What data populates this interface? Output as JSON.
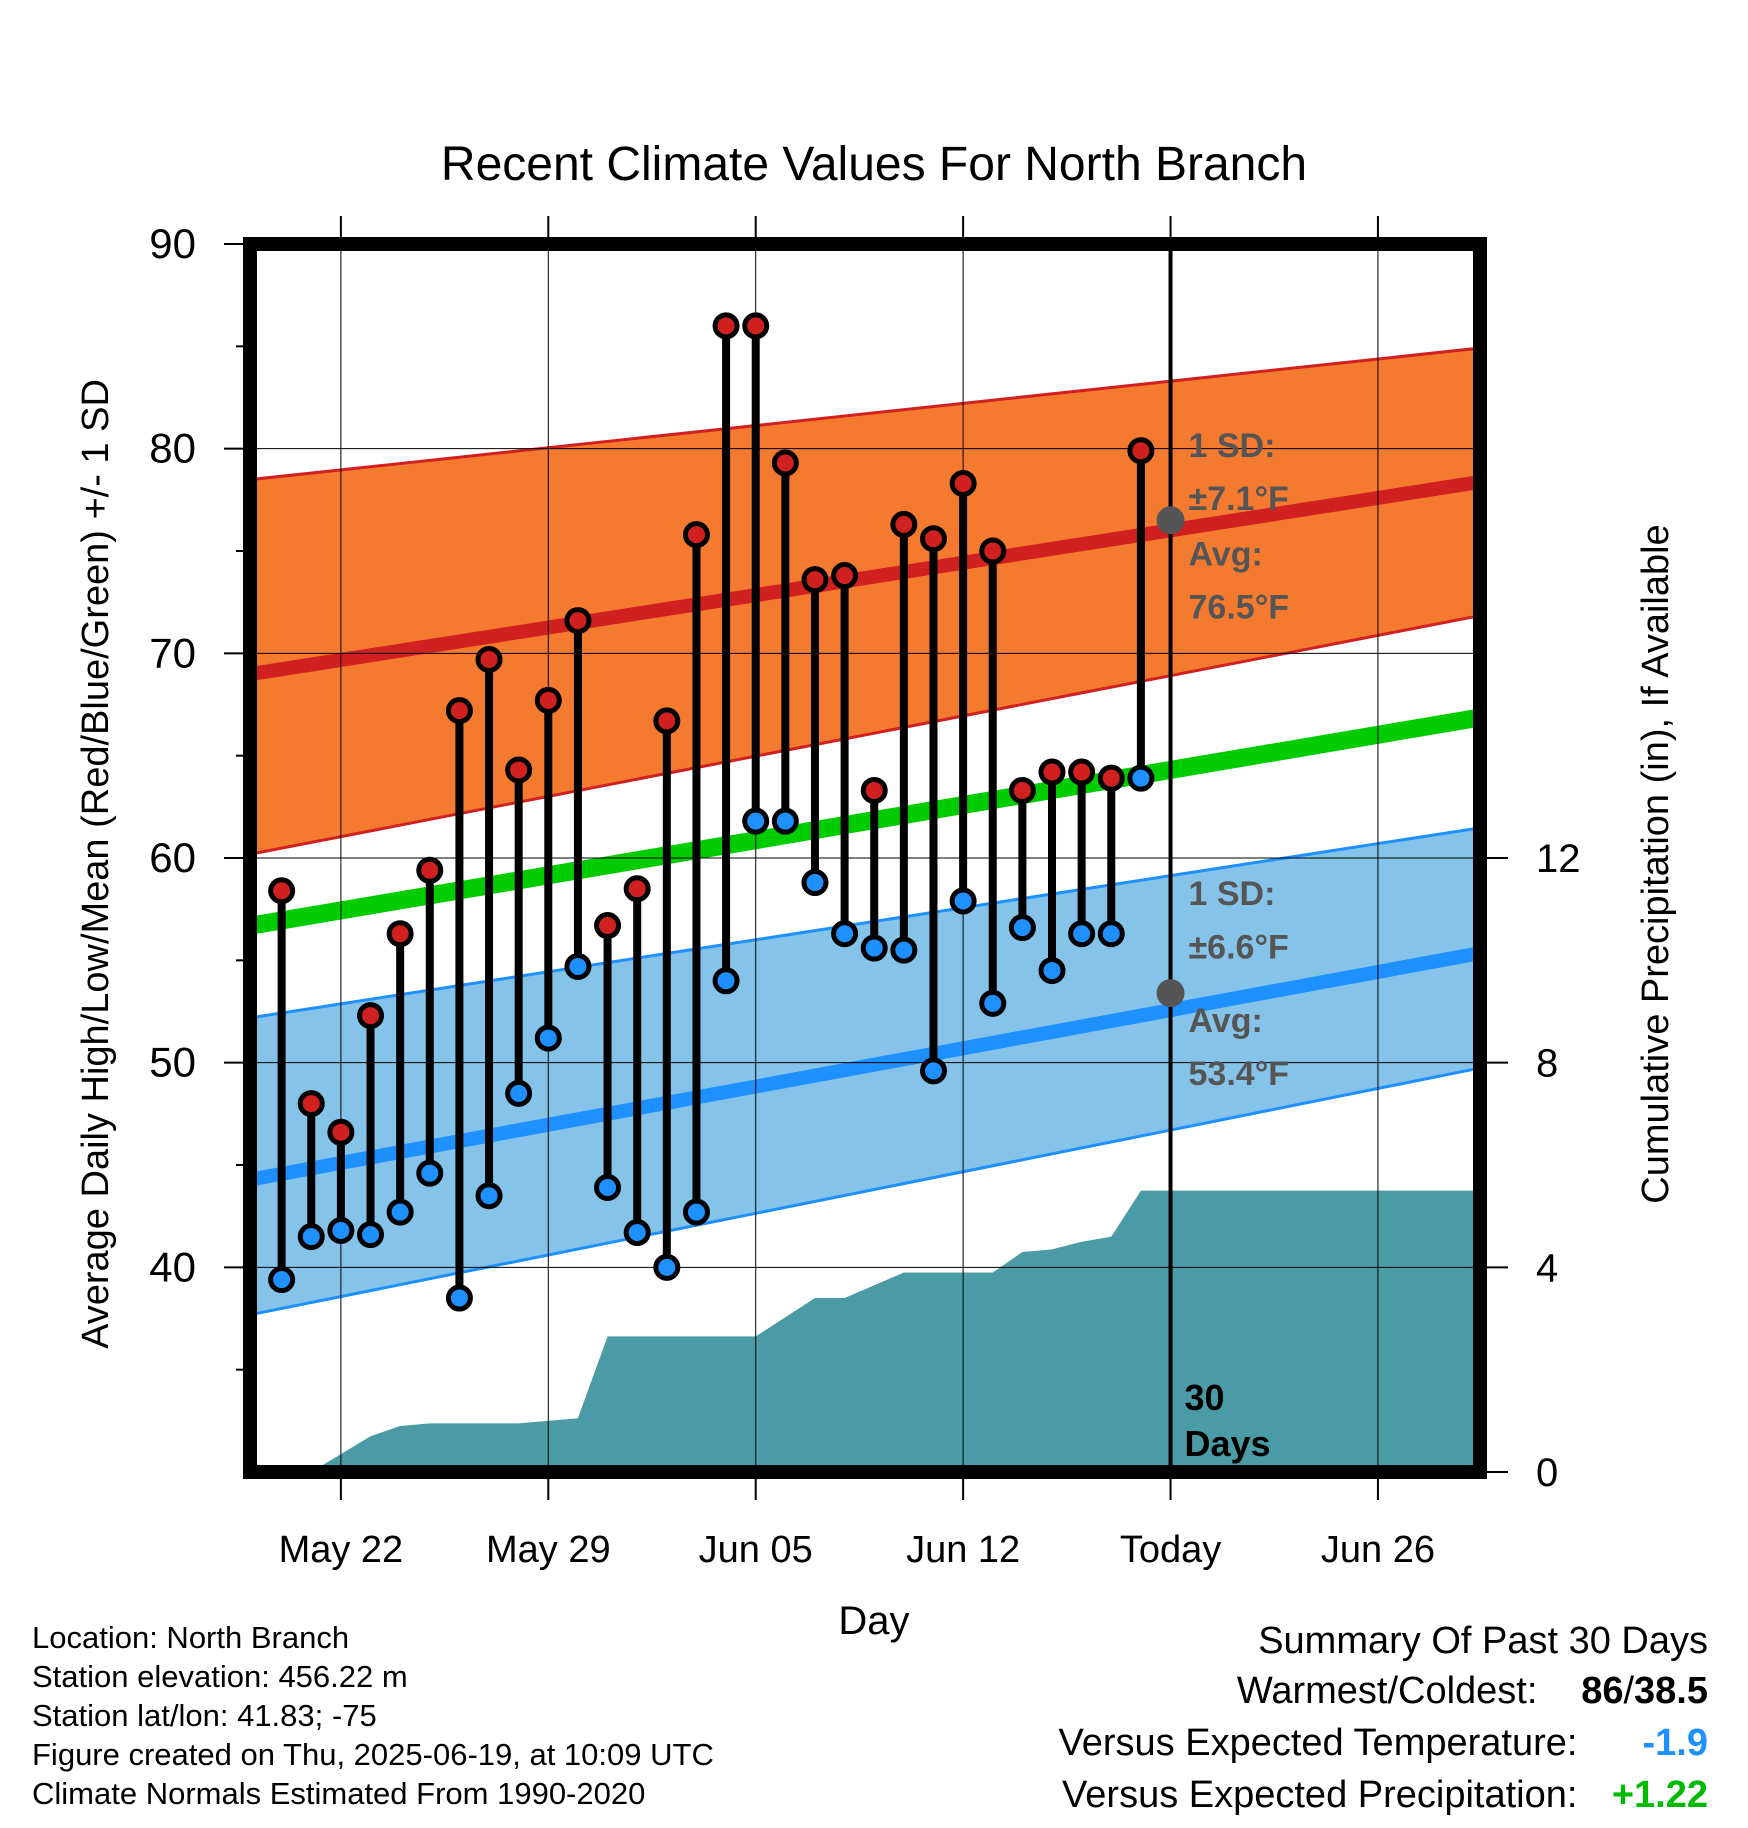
{
  "chart_data": {
    "type": "line",
    "title": "Recent Climate Values For North Branch",
    "xlabel": "Day",
    "ylabel": "Average Daily High/Low/Mean (Red/Blue/Green) +/- 1 SD",
    "y2label": "Cumulative Precipitation (in), If Available",
    "ylim": [
      30,
      90
    ],
    "y2lim": [
      0,
      24
    ],
    "y_ticks": [
      "40",
      "50",
      "60",
      "70",
      "80",
      "90"
    ],
    "y2_ticks": [
      "0",
      "4",
      "8",
      "12"
    ],
    "x_start_date": "2025-05-19",
    "xlim": [
      "2025-05-19",
      "2025-06-30"
    ],
    "x_ticks": [
      {
        "date": "2025-05-22",
        "label": "May 22"
      },
      {
        "date": "2025-05-29",
        "label": "May 29"
      },
      {
        "date": "2025-06-05",
        "label": "Jun 05"
      },
      {
        "date": "2025-06-12",
        "label": "Jun 12"
      },
      {
        "date": "2025-06-19",
        "label": "Today"
      },
      {
        "date": "2025-06-26",
        "label": "Jun 26"
      }
    ],
    "today": "2025-06-19",
    "today_label": "30\nDays",
    "colors": {
      "high": "#d02020",
      "high_band": "#f47a30",
      "low": "#1e90ff",
      "low_band": "#86c3e8",
      "mean": "#00cc00",
      "precip": "#4a9ba6",
      "marker_gray": "#555555"
    },
    "normals": {
      "high_mean": [
        {
          "date": "2025-05-19",
          "value": 69.0
        },
        {
          "date": "2025-06-30",
          "value": 78.5
        }
      ],
      "high_upper": [
        {
          "date": "2025-05-19",
          "value": 78.5
        },
        {
          "date": "2025-06-30",
          "value": 85.0
        }
      ],
      "high_lower": [
        {
          "date": "2025-05-19",
          "value": 60.2
        },
        {
          "date": "2025-06-30",
          "value": 72.0
        }
      ],
      "low_mean": [
        {
          "date": "2025-05-19",
          "value": 44.3
        },
        {
          "date": "2025-06-30",
          "value": 55.5
        }
      ],
      "low_upper": [
        {
          "date": "2025-05-19",
          "value": 52.2
        },
        {
          "date": "2025-06-30",
          "value": 61.6
        }
      ],
      "low_lower": [
        {
          "date": "2025-05-19",
          "value": 37.7
        },
        {
          "date": "2025-06-30",
          "value": 49.9
        }
      ],
      "mean": [
        {
          "date": "2025-05-19",
          "value": 56.7
        },
        {
          "date": "2025-06-30",
          "value": 67.0
        }
      ]
    },
    "annotations": {
      "high_sd_title": "1 SD:",
      "high_sd_value": "±7.1°F",
      "high_avg_title": "Avg:",
      "high_avg_value": "76.5°F",
      "low_sd_title": "1 SD:",
      "low_sd_value": "±6.6°F",
      "low_avg_title": "Avg:",
      "low_avg_value": "53.4°F",
      "today_high_avg": 76.5,
      "today_low_avg": 53.4
    },
    "series": [
      {
        "name": "High",
        "values": [
          {
            "date": "2025-05-20",
            "value": 58.4
          },
          {
            "date": "2025-05-21",
            "value": 48.0
          },
          {
            "date": "2025-05-22",
            "value": 46.6
          },
          {
            "date": "2025-05-23",
            "value": 52.3
          },
          {
            "date": "2025-05-24",
            "value": 56.3
          },
          {
            "date": "2025-05-25",
            "value": 59.4
          },
          {
            "date": "2025-05-26",
            "value": 67.2
          },
          {
            "date": "2025-05-27",
            "value": 69.7
          },
          {
            "date": "2025-05-28",
            "value": 64.3
          },
          {
            "date": "2025-05-29",
            "value": 67.7
          },
          {
            "date": "2025-05-30",
            "value": 71.6
          },
          {
            "date": "2025-05-31",
            "value": 56.7
          },
          {
            "date": "2025-06-01",
            "value": 58.5
          },
          {
            "date": "2025-06-02",
            "value": 66.7
          },
          {
            "date": "2025-06-03",
            "value": 75.8
          },
          {
            "date": "2025-06-04",
            "value": 86.0
          },
          {
            "date": "2025-06-05",
            "value": 86.0
          },
          {
            "date": "2025-06-06",
            "value": 79.3
          },
          {
            "date": "2025-06-07",
            "value": 73.6
          },
          {
            "date": "2025-06-08",
            "value": 73.8
          },
          {
            "date": "2025-06-09",
            "value": 63.3
          },
          {
            "date": "2025-06-10",
            "value": 76.3
          },
          {
            "date": "2025-06-11",
            "value": 75.6
          },
          {
            "date": "2025-06-12",
            "value": 78.3
          },
          {
            "date": "2025-06-13",
            "value": 75.0
          },
          {
            "date": "2025-06-14",
            "value": 63.3
          },
          {
            "date": "2025-06-15",
            "value": 64.2
          },
          {
            "date": "2025-06-16",
            "value": 64.2
          },
          {
            "date": "2025-06-17",
            "value": 63.9
          },
          {
            "date": "2025-06-18",
            "value": 79.9
          }
        ]
      },
      {
        "name": "Low",
        "values": [
          {
            "date": "2025-05-20",
            "value": 39.4
          },
          {
            "date": "2025-05-21",
            "value": 41.5
          },
          {
            "date": "2025-05-22",
            "value": 41.8
          },
          {
            "date": "2025-05-23",
            "value": 41.6
          },
          {
            "date": "2025-05-24",
            "value": 42.7
          },
          {
            "date": "2025-05-25",
            "value": 44.6
          },
          {
            "date": "2025-05-26",
            "value": 38.5
          },
          {
            "date": "2025-05-27",
            "value": 43.5
          },
          {
            "date": "2025-05-28",
            "value": 48.5
          },
          {
            "date": "2025-05-29",
            "value": 51.2
          },
          {
            "date": "2025-05-30",
            "value": 54.7
          },
          {
            "date": "2025-05-31",
            "value": 43.9
          },
          {
            "date": "2025-06-01",
            "value": 41.7
          },
          {
            "date": "2025-06-02",
            "value": 40.0
          },
          {
            "date": "2025-06-03",
            "value": 42.7
          },
          {
            "date": "2025-06-04",
            "value": 54.0
          },
          {
            "date": "2025-06-05",
            "value": 61.8
          },
          {
            "date": "2025-06-06",
            "value": 61.8
          },
          {
            "date": "2025-06-07",
            "value": 58.8
          },
          {
            "date": "2025-06-08",
            "value": 56.3
          },
          {
            "date": "2025-06-09",
            "value": 55.6
          },
          {
            "date": "2025-06-10",
            "value": 55.5
          },
          {
            "date": "2025-06-11",
            "value": 49.6
          },
          {
            "date": "2025-06-12",
            "value": 57.9
          },
          {
            "date": "2025-06-13",
            "value": 52.9
          },
          {
            "date": "2025-06-14",
            "value": 56.6
          },
          {
            "date": "2025-06-15",
            "value": 54.5
          },
          {
            "date": "2025-06-16",
            "value": 56.3
          },
          {
            "date": "2025-06-17",
            "value": 56.3
          },
          {
            "date": "2025-06-18",
            "value": 63.9
          }
        ]
      },
      {
        "name": "Cumulative Precipitation",
        "values": [
          {
            "date": "2025-05-20",
            "value": 0.0
          },
          {
            "date": "2025-05-21",
            "value": 0.0
          },
          {
            "date": "2025-05-23",
            "value": 0.7
          },
          {
            "date": "2025-05-24",
            "value": 0.9
          },
          {
            "date": "2025-05-25",
            "value": 0.95
          },
          {
            "date": "2025-05-28",
            "value": 0.95
          },
          {
            "date": "2025-05-30",
            "value": 1.05
          },
          {
            "date": "2025-05-31",
            "value": 2.65
          },
          {
            "date": "2025-06-05",
            "value": 2.65
          },
          {
            "date": "2025-06-07",
            "value": 3.4
          },
          {
            "date": "2025-06-08",
            "value": 3.4
          },
          {
            "date": "2025-06-10",
            "value": 3.9
          },
          {
            "date": "2025-06-13",
            "value": 3.9
          },
          {
            "date": "2025-06-14",
            "value": 4.3
          },
          {
            "date": "2025-06-15",
            "value": 4.35
          },
          {
            "date": "2025-06-16",
            "value": 4.5
          },
          {
            "date": "2025-06-17",
            "value": 4.6
          },
          {
            "date": "2025-06-18",
            "value": 5.5
          },
          {
            "date": "2025-06-30",
            "value": 5.5
          }
        ]
      }
    ]
  },
  "info": {
    "location": "Location: North Branch",
    "elevation": "Station elevation: 456.22 m",
    "latlon": "Station lat/lon: 41.83; -75",
    "created": "Figure created on Thu, 2025-06-19, at 10:09 UTC",
    "normals": "Climate Normals Estimated From 1990-2020"
  },
  "summary": {
    "title": "Summary Of Past 30 Days",
    "warm_label": "Warmest/Coldest:",
    "warm_value_a": "86",
    "warm_value_sep": "/",
    "warm_value_b": "38.5",
    "temp_label": "Versus Expected Temperature:",
    "temp_value": "-1.9",
    "temp_color": "#1e90ff",
    "precip_label": "Versus Expected Precipitation:",
    "precip_value": "+1.22",
    "precip_color": "#00bb00"
  }
}
